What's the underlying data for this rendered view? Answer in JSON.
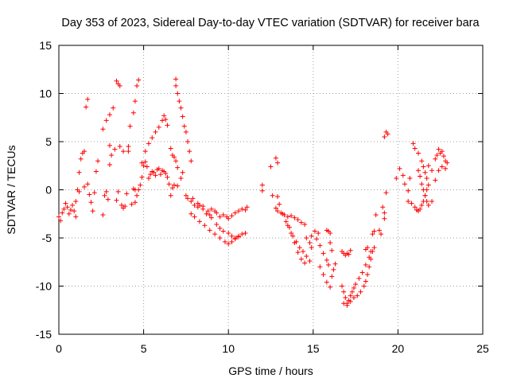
{
  "chart_data": {
    "type": "scatter",
    "title": "Day 353 of 2023, Sidereal Day-to-day VTEC variation (SDTVAR) for receiver bara",
    "xlabel": "GPS time / hours",
    "ylabel": "SDTVAR / TECUs",
    "xlim": [
      0,
      25
    ],
    "ylim": [
      -15,
      15
    ],
    "xticks": [
      0,
      5,
      10,
      15,
      20,
      25
    ],
    "yticks": [
      -15,
      -10,
      -5,
      0,
      5,
      10,
      15
    ],
    "grid": true,
    "marker": "+",
    "color": "#ff0000",
    "series": [
      {
        "name": "SDTVAR",
        "points": [
          [
            0.0,
            -2.8
          ],
          [
            0.1,
            -3.2
          ],
          [
            0.2,
            -2.4
          ],
          [
            0.3,
            -2.0
          ],
          [
            0.4,
            -1.4
          ],
          [
            0.5,
            -1.8
          ],
          [
            0.6,
            -2.5
          ],
          [
            0.7,
            -2.1
          ],
          [
            0.8,
            -1.6
          ],
          [
            0.9,
            -2.2
          ],
          [
            1.0,
            -1.2
          ],
          [
            1.0,
            -2.8
          ],
          [
            1.1,
            0.0
          ],
          [
            1.2,
            1.8
          ],
          [
            1.3,
            3.2
          ],
          [
            1.4,
            3.8
          ],
          [
            1.5,
            4.0
          ],
          [
            1.2,
            -0.2
          ],
          [
            1.5,
            0.3
          ],
          [
            1.6,
            8.6
          ],
          [
            1.7,
            9.4
          ],
          [
            1.7,
            0.6
          ],
          [
            1.8,
            -0.5
          ],
          [
            1.9,
            -1.3
          ],
          [
            2.0,
            -2.2
          ],
          [
            2.1,
            -0.3
          ],
          [
            2.2,
            1.9
          ],
          [
            2.3,
            3.0
          ],
          [
            2.6,
            -2.6
          ],
          [
            2.7,
            -0.6
          ],
          [
            2.8,
            -0.2
          ],
          [
            2.9,
            -1.0
          ],
          [
            2.6,
            6.3
          ],
          [
            2.8,
            7.2
          ],
          [
            3.0,
            7.8
          ],
          [
            3.2,
            8.5
          ],
          [
            3.0,
            2.6
          ],
          [
            3.0,
            4.6
          ],
          [
            3.1,
            3.6
          ],
          [
            3.3,
            4.2
          ],
          [
            3.4,
            -1.1
          ],
          [
            3.5,
            -0.2
          ],
          [
            3.6,
            4.5
          ],
          [
            3.8,
            4.0
          ],
          [
            3.4,
            11.3
          ],
          [
            3.5,
            11.0
          ],
          [
            3.6,
            10.8
          ],
          [
            3.7,
            -1.6
          ],
          [
            3.8,
            -1.9
          ],
          [
            3.9,
            -1.7
          ],
          [
            4.0,
            -0.4
          ],
          [
            4.1,
            4.0
          ],
          [
            4.1,
            4.5
          ],
          [
            4.3,
            -1.5
          ],
          [
            4.4,
            0.1
          ],
          [
            4.5,
            0.0
          ],
          [
            4.2,
            6.6
          ],
          [
            4.4,
            8.0
          ],
          [
            4.5,
            9.2
          ],
          [
            4.6,
            10.8
          ],
          [
            4.7,
            11.4
          ],
          [
            4.5,
            -1.3
          ],
          [
            4.6,
            -0.6
          ],
          [
            4.7,
            0.0
          ],
          [
            4.8,
            0.5
          ],
          [
            4.9,
            1.3
          ],
          [
            5.0,
            2.5
          ],
          [
            5.1,
            2.9
          ],
          [
            5.2,
            2.4
          ],
          [
            5.3,
            1.2
          ],
          [
            5.4,
            1.6
          ],
          [
            5.5,
            1.9
          ],
          [
            5.6,
            1.8
          ],
          [
            5.7,
            1.5
          ],
          [
            5.8,
            2.1
          ],
          [
            5.9,
            2.2
          ],
          [
            6.0,
            1.6
          ],
          [
            6.1,
            2.0
          ],
          [
            6.2,
            1.9
          ],
          [
            6.3,
            1.7
          ],
          [
            4.9,
            2.8
          ],
          [
            5.1,
            4.0
          ],
          [
            5.3,
            4.8
          ],
          [
            5.5,
            5.4
          ],
          [
            5.7,
            6.0
          ],
          [
            5.9,
            6.5
          ],
          [
            6.1,
            7.2
          ],
          [
            6.2,
            7.7
          ],
          [
            6.3,
            7.3
          ],
          [
            6.4,
            6.7
          ],
          [
            6.4,
            1.3
          ],
          [
            6.5,
            0.6
          ],
          [
            6.6,
            -0.6
          ],
          [
            6.7,
            0.2
          ],
          [
            6.8,
            0.5
          ],
          [
            6.9,
            11.5
          ],
          [
            6.9,
            10.8
          ],
          [
            7.0,
            10.0
          ],
          [
            7.1,
            9.2
          ],
          [
            7.2,
            8.5
          ],
          [
            7.3,
            7.6
          ],
          [
            7.0,
            0.4
          ],
          [
            7.2,
            1.2
          ],
          [
            7.3,
            1.8
          ],
          [
            7.4,
            6.6
          ],
          [
            7.5,
            6.0
          ],
          [
            7.6,
            5.0
          ],
          [
            7.7,
            4.0
          ],
          [
            7.8,
            3.0
          ],
          [
            6.6,
            4.3
          ],
          [
            6.7,
            3.6
          ],
          [
            6.8,
            3.4
          ],
          [
            6.9,
            3.0
          ],
          [
            7.0,
            2.3
          ],
          [
            7.5,
            -0.6
          ],
          [
            7.6,
            -0.9
          ],
          [
            7.8,
            -1.2
          ],
          [
            8.0,
            -1.6
          ],
          [
            8.2,
            -1.8
          ],
          [
            8.3,
            -1.6
          ],
          [
            8.5,
            -2.0
          ],
          [
            8.7,
            -2.5
          ],
          [
            8.9,
            -2.6
          ],
          [
            9.0,
            -2.0
          ],
          [
            9.2,
            -2.2
          ],
          [
            9.3,
            -2.4
          ],
          [
            9.5,
            -2.8
          ],
          [
            9.7,
            -2.6
          ],
          [
            9.9,
            -2.8
          ],
          [
            10.0,
            -3.0
          ],
          [
            10.2,
            -2.7
          ],
          [
            10.4,
            -2.4
          ],
          [
            10.6,
            -2.2
          ],
          [
            10.8,
            -2.0
          ],
          [
            11.0,
            -2.1
          ],
          [
            11.1,
            -1.8
          ],
          [
            7.8,
            -2.5
          ],
          [
            8.0,
            -2.8
          ],
          [
            8.3,
            -3.3
          ],
          [
            8.6,
            -3.7
          ],
          [
            8.9,
            -4.2
          ],
          [
            9.2,
            -4.6
          ],
          [
            9.5,
            -5.0
          ],
          [
            9.8,
            -5.4
          ],
          [
            10.0,
            -5.6
          ],
          [
            10.2,
            -5.4
          ],
          [
            10.4,
            -5.1
          ],
          [
            10.6,
            -4.8
          ],
          [
            10.8,
            -4.6
          ],
          [
            11.0,
            -4.5
          ],
          [
            7.9,
            -0.9
          ],
          [
            8.2,
            -1.4
          ],
          [
            8.5,
            -1.7
          ],
          [
            8.8,
            -2.2
          ],
          [
            9.0,
            -2.9
          ],
          [
            9.3,
            -3.6
          ],
          [
            9.5,
            -4.0
          ],
          [
            9.7,
            -4.3
          ],
          [
            10.0,
            -4.5
          ],
          [
            10.2,
            -4.8
          ],
          [
            10.4,
            -5.0
          ],
          [
            10.6,
            -4.9
          ],
          [
            12.0,
            0.5
          ],
          [
            12.0,
            -0.1
          ],
          [
            12.5,
            2.4
          ],
          [
            12.6,
            -0.6
          ],
          [
            12.8,
            3.3
          ],
          [
            12.9,
            2.8
          ],
          [
            12.9,
            -0.7
          ],
          [
            12.8,
            -1.9
          ],
          [
            12.9,
            -2.2
          ],
          [
            13.1,
            -2.4
          ],
          [
            13.3,
            -2.6
          ],
          [
            13.5,
            -2.8
          ],
          [
            13.7,
            -2.7
          ],
          [
            13.9,
            -2.9
          ],
          [
            14.1,
            -3.1
          ],
          [
            14.3,
            -3.4
          ],
          [
            14.5,
            -3.6
          ],
          [
            13.0,
            -1.5
          ],
          [
            13.2,
            -2.5
          ],
          [
            13.4,
            -3.3
          ],
          [
            13.6,
            -3.9
          ],
          [
            13.8,
            -4.8
          ],
          [
            14.0,
            -5.4
          ],
          [
            14.2,
            -6.0
          ],
          [
            14.4,
            -6.4
          ],
          [
            14.6,
            -6.9
          ],
          [
            14.8,
            -7.4
          ],
          [
            13.5,
            -3.7
          ],
          [
            13.7,
            -4.5
          ],
          [
            13.9,
            -5.5
          ],
          [
            14.1,
            -6.5
          ],
          [
            14.3,
            -7.2
          ],
          [
            14.5,
            -7.6
          ],
          [
            14.6,
            -5.0
          ],
          [
            14.8,
            -5.5
          ],
          [
            14.9,
            -6.0
          ],
          [
            14.9,
            -4.8
          ],
          [
            15.1,
            -4.3
          ],
          [
            15.2,
            -5.1
          ],
          [
            15.3,
            -4.5
          ],
          [
            15.4,
            -5.8
          ],
          [
            15.6,
            -6.6
          ],
          [
            15.8,
            -7.3
          ],
          [
            15.9,
            -7.8
          ],
          [
            15.8,
            -4.2
          ],
          [
            15.9,
            -4.3
          ],
          [
            16.0,
            -4.5
          ],
          [
            16.0,
            -5.5
          ],
          [
            16.1,
            -6.3
          ],
          [
            15.4,
            -8.0
          ],
          [
            15.6,
            -8.8
          ],
          [
            15.8,
            -9.6
          ],
          [
            16.0,
            -10.1
          ],
          [
            16.1,
            -9.0
          ],
          [
            16.2,
            -8.3
          ],
          [
            16.3,
            -7.7
          ],
          [
            16.7,
            -6.4
          ],
          [
            16.8,
            -6.6
          ],
          [
            16.9,
            -6.8
          ],
          [
            17.0,
            -6.6
          ],
          [
            17.1,
            -6.7
          ],
          [
            17.2,
            -6.3
          ],
          [
            16.7,
            -10.0
          ],
          [
            16.8,
            -10.6
          ],
          [
            16.9,
            -11.2
          ],
          [
            17.0,
            -11.8
          ],
          [
            17.1,
            -11.5
          ],
          [
            17.2,
            -11.0
          ],
          [
            17.3,
            -10.6
          ],
          [
            17.4,
            -10.2
          ],
          [
            16.8,
            -11.8
          ],
          [
            17.0,
            -12.0
          ],
          [
            17.2,
            -11.6
          ],
          [
            17.4,
            -11.2
          ],
          [
            17.6,
            -11.0
          ],
          [
            17.8,
            -10.6
          ],
          [
            18.0,
            -10.0
          ],
          [
            18.1,
            -9.5
          ],
          [
            18.2,
            -8.8
          ],
          [
            18.3,
            -8.0
          ],
          [
            18.4,
            -7.2
          ],
          [
            18.5,
            -6.4
          ],
          [
            18.6,
            -6.0
          ],
          [
            17.5,
            -9.8
          ],
          [
            17.7,
            -9.2
          ],
          [
            17.9,
            -8.6
          ],
          [
            18.1,
            -7.8
          ],
          [
            18.3,
            -7.0
          ],
          [
            18.4,
            -6.4
          ],
          [
            18.1,
            -6.2
          ],
          [
            18.2,
            -6.0
          ],
          [
            18.5,
            -4.6
          ],
          [
            18.6,
            -4.3
          ],
          [
            18.7,
            -2.6
          ],
          [
            18.9,
            -4.2
          ],
          [
            19.0,
            -4.6
          ],
          [
            19.1,
            -1.8
          ],
          [
            19.2,
            -2.4
          ],
          [
            19.2,
            -3.0
          ],
          [
            19.3,
            -0.3
          ],
          [
            19.2,
            5.5
          ],
          [
            19.3,
            6.0
          ],
          [
            19.4,
            5.8
          ],
          [
            19.9,
            1.2
          ],
          [
            20.1,
            2.2
          ],
          [
            20.3,
            1.5
          ],
          [
            20.4,
            0.6
          ],
          [
            20.6,
            -0.1
          ],
          [
            20.7,
            1.2
          ],
          [
            20.6,
            -1.2
          ],
          [
            20.8,
            -1.4
          ],
          [
            21.0,
            -1.8
          ],
          [
            21.1,
            -2.1
          ],
          [
            21.2,
            -2.2
          ],
          [
            21.3,
            -2.0
          ],
          [
            21.4,
            -1.6
          ],
          [
            21.5,
            -1.2
          ],
          [
            21.6,
            -0.6
          ],
          [
            21.7,
            0.0
          ],
          [
            21.8,
            0.5
          ],
          [
            20.9,
            4.8
          ],
          [
            21.0,
            4.3
          ],
          [
            21.2,
            3.8
          ],
          [
            21.4,
            3.0
          ],
          [
            21.5,
            2.4
          ],
          [
            21.6,
            1.8
          ],
          [
            21.7,
            1.2
          ],
          [
            21.2,
            2.0
          ],
          [
            21.3,
            1.4
          ],
          [
            21.4,
            0.6
          ],
          [
            21.5,
            0.0
          ],
          [
            21.6,
            -0.6
          ],
          [
            21.7,
            -1.2
          ],
          [
            21.8,
            -1.6
          ],
          [
            22.0,
            -1.2
          ],
          [
            21.8,
            2.5
          ],
          [
            22.0,
            2.0
          ],
          [
            22.2,
            3.2
          ],
          [
            22.3,
            3.6
          ],
          [
            22.4,
            4.2
          ],
          [
            22.5,
            3.8
          ],
          [
            22.6,
            4.0
          ],
          [
            22.7,
            3.5
          ],
          [
            22.8,
            3.0
          ],
          [
            22.9,
            2.8
          ],
          [
            22.2,
            1.0
          ],
          [
            22.4,
            2.0
          ],
          [
            22.6,
            2.4
          ],
          [
            22.8,
            2.2
          ]
        ]
      }
    ]
  }
}
